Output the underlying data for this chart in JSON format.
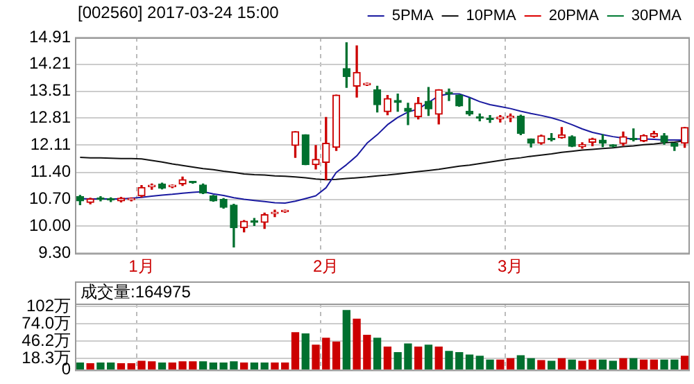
{
  "chart_data": [
    {
      "type": "candlestick",
      "title": "[002560] 2017-03-24 15:00",
      "categories": [
        null,
        null,
        null,
        null,
        null,
        null,
        "1月",
        null,
        null,
        null,
        null,
        null,
        null,
        null,
        null,
        null,
        null,
        null,
        null,
        null,
        null,
        null,
        null,
        null,
        "2月",
        null,
        null,
        null,
        null,
        null,
        null,
        null,
        null,
        null,
        null,
        null,
        null,
        null,
        null,
        null,
        null,
        null,
        "3月",
        null,
        null,
        null,
        null,
        null,
        null,
        null,
        null,
        null,
        null,
        null,
        null,
        null,
        null,
        null,
        null,
        null
      ],
      "ohlc": [
        [
          10.77,
          10.8,
          10.56,
          10.66
        ],
        [
          10.62,
          10.73,
          10.58,
          10.71
        ],
        [
          10.72,
          10.77,
          10.66,
          10.7
        ],
        [
          10.71,
          10.74,
          10.64,
          10.68
        ],
        [
          10.66,
          10.75,
          10.63,
          10.73
        ],
        [
          10.69,
          10.74,
          10.66,
          10.71
        ],
        [
          10.79,
          11.06,
          10.76,
          11.01
        ],
        [
          11.03,
          11.1,
          10.96,
          11.05
        ],
        [
          11.1,
          11.12,
          10.97,
          10.99
        ],
        [
          11.03,
          11.07,
          11.0,
          11.05
        ],
        [
          11.1,
          11.28,
          11.06,
          11.21
        ],
        [
          11.14,
          11.14,
          11.12,
          11.13
        ],
        [
          11.07,
          11.1,
          10.85,
          10.86
        ],
        [
          10.79,
          10.8,
          10.65,
          10.66
        ],
        [
          10.7,
          10.72,
          10.47,
          10.49
        ],
        [
          10.55,
          10.57,
          9.46,
          9.96
        ],
        [
          9.96,
          10.15,
          9.85,
          10.13
        ],
        [
          10.14,
          10.2,
          10.02,
          10.1
        ],
        [
          10.1,
          10.34,
          9.94,
          10.3
        ],
        [
          10.33,
          10.42,
          10.25,
          10.35
        ],
        [
          10.38,
          10.42,
          10.36,
          10.4
        ],
        [
          12.1,
          12.46,
          11.79,
          12.46
        ],
        [
          12.38,
          12.38,
          11.6,
          11.6
        ],
        [
          11.6,
          12.1,
          11.49,
          11.74
        ],
        [
          11.66,
          12.83,
          11.21,
          12.16
        ],
        [
          12.05,
          13.41,
          11.97,
          13.41
        ],
        [
          14.1,
          14.77,
          13.61,
          13.89
        ],
        [
          13.64,
          14.69,
          13.36,
          14.0
        ],
        [
          13.68,
          13.72,
          13.66,
          13.7
        ],
        [
          13.55,
          13.64,
          12.97,
          13.16
        ],
        [
          12.98,
          13.4,
          12.9,
          13.32
        ],
        [
          13.27,
          13.44,
          12.99,
          13.22
        ],
        [
          13.07,
          13.2,
          12.64,
          12.99
        ],
        [
          12.85,
          13.35,
          12.79,
          13.2
        ],
        [
          13.25,
          13.61,
          12.88,
          13.05
        ],
        [
          12.91,
          13.55,
          12.66,
          13.55
        ],
        [
          13.48,
          13.57,
          13.27,
          13.44
        ],
        [
          13.41,
          13.41,
          13.12,
          13.13
        ],
        [
          12.99,
          13.33,
          12.88,
          12.92
        ],
        [
          12.84,
          12.92,
          12.74,
          12.81
        ],
        [
          12.8,
          12.88,
          12.7,
          12.77
        ],
        [
          12.79,
          12.88,
          12.71,
          12.84
        ],
        [
          12.82,
          12.92,
          12.72,
          12.86
        ],
        [
          12.86,
          12.89,
          12.38,
          12.41
        ],
        [
          12.27,
          12.27,
          12.06,
          12.16
        ],
        [
          12.16,
          12.37,
          12.13,
          12.35
        ],
        [
          12.28,
          12.41,
          12.22,
          12.25
        ],
        [
          12.3,
          12.57,
          12.29,
          12.38
        ],
        [
          12.33,
          12.35,
          12.07,
          12.08
        ],
        [
          12.07,
          12.17,
          12.03,
          12.12
        ],
        [
          12.18,
          12.29,
          12.09,
          12.27
        ],
        [
          12.24,
          12.38,
          12.07,
          12.16
        ],
        [
          12.1,
          12.12,
          12.06,
          12.08
        ],
        [
          12.15,
          12.45,
          12.1,
          12.33
        ],
        [
          12.27,
          12.53,
          12.22,
          12.25
        ],
        [
          12.22,
          12.38,
          12.2,
          12.36
        ],
        [
          12.33,
          12.47,
          12.31,
          12.41
        ],
        [
          12.35,
          12.41,
          12.13,
          12.19
        ],
        [
          12.16,
          12.16,
          11.97,
          12.08
        ],
        [
          12.16,
          12.57,
          12.05,
          12.57
        ]
      ],
      "colors": [
        "#00702f",
        "#cc0000",
        "#00702f",
        "#00702f",
        "#cc0000",
        "#cc0000",
        "#cc0000",
        "#cc0000",
        "#00702f",
        "#cc0000",
        "#cc0000",
        "#00702f",
        "#00702f",
        "#00702f",
        "#00702f",
        "#00702f",
        "#cc0000",
        "#00702f",
        "#cc0000",
        "#cc0000",
        "#cc0000",
        "#cc0000",
        "#00702f",
        "#cc0000",
        "#cc0000",
        "#cc0000",
        "#00702f",
        "#cc0000",
        "#cc0000",
        "#00702f",
        "#cc0000",
        "#00702f",
        "#00702f",
        "#cc0000",
        "#00702f",
        "#cc0000",
        "#00702f",
        "#00702f",
        "#00702f",
        "#00702f",
        "#00702f",
        "#cc0000",
        "#cc0000",
        "#00702f",
        "#00702f",
        "#cc0000",
        "#00702f",
        "#cc0000",
        "#00702f",
        "#cc0000",
        "#cc0000",
        "#00702f",
        "#00702f",
        "#cc0000",
        "#00702f",
        "#cc0000",
        "#cc0000",
        "#00702f",
        "#00702f",
        "#cc0000"
      ],
      "series": [
        {
          "type": "line",
          "name": "5PMA",
          "color": "#1a1aa0",
          "values": [
            10.72,
            10.71,
            10.71,
            10.71,
            10.71,
            10.73,
            10.75,
            10.78,
            10.81,
            10.83,
            10.86,
            10.88,
            10.9,
            10.84,
            10.8,
            10.74,
            10.7,
            10.67,
            10.64,
            10.61,
            10.6,
            10.65,
            10.72,
            10.79,
            11.0,
            11.4,
            11.6,
            11.83,
            12.16,
            12.38,
            12.64,
            12.83,
            12.97,
            13.05,
            13.22,
            13.39,
            13.44,
            13.44,
            13.35,
            13.24,
            13.16,
            13.11,
            13.06,
            12.99,
            12.93,
            12.88,
            12.82,
            12.74,
            12.64,
            12.53,
            12.44,
            12.38,
            12.33,
            12.29,
            12.27,
            12.27,
            12.26,
            12.24,
            12.24,
            12.24
          ]
        },
        {
          "type": "line",
          "name": "10PMA",
          "color": "#111111",
          "values": [
            11.79,
            11.78,
            11.78,
            11.77,
            11.76,
            11.76,
            11.75,
            11.71,
            11.67,
            11.62,
            11.58,
            11.54,
            11.5,
            11.47,
            11.43,
            11.4,
            11.36,
            11.34,
            11.33,
            11.31,
            11.3,
            11.28,
            11.26,
            11.23,
            11.21,
            11.22,
            11.24,
            11.26,
            11.28,
            11.31,
            11.33,
            11.36,
            11.39,
            11.42,
            11.45,
            11.48,
            11.52,
            11.56,
            11.59,
            11.63,
            11.67,
            11.71,
            11.75,
            11.78,
            11.82,
            11.85,
            11.88,
            11.92,
            11.95,
            11.98,
            12.0,
            12.02,
            12.04,
            12.07,
            12.09,
            12.12,
            12.14,
            12.17,
            12.19,
            12.22
          ]
        },
        {
          "type": "line",
          "name": "20PMA",
          "color": "#dd0000",
          "values": [
            null,
            null,
            null,
            null,
            null,
            null,
            null,
            null,
            null,
            null,
            null,
            null,
            null,
            null,
            null,
            null,
            null,
            null,
            null,
            null,
            null,
            null,
            null,
            null,
            null,
            null,
            null,
            null,
            null,
            null,
            null,
            null,
            null,
            null,
            null,
            null,
            null,
            null,
            null,
            null,
            null,
            null,
            null,
            null,
            null,
            null,
            null,
            null,
            null,
            null,
            null,
            null,
            null,
            null,
            null,
            null,
            null,
            null,
            null,
            null
          ]
        },
        {
          "type": "line",
          "name": "30PMA",
          "color": "#007a33",
          "values": [
            null,
            null,
            null,
            null,
            null,
            null,
            null,
            null,
            null,
            null,
            null,
            null,
            null,
            null,
            null,
            null,
            null,
            null,
            null,
            null,
            null,
            null,
            null,
            null,
            null,
            null,
            null,
            null,
            null,
            null,
            null,
            null,
            null,
            null,
            null,
            null,
            null,
            null,
            null,
            null,
            null,
            null,
            null,
            null,
            null,
            null,
            null,
            null,
            null,
            null,
            null,
            null,
            null,
            null,
            null,
            null,
            null,
            null,
            null,
            null
          ]
        }
      ],
      "ylim": [
        9.3,
        14.91
      ],
      "yticks": [
        {
          "value": 9.3,
          "label": "9.30"
        },
        {
          "value": 10,
          "label": "10.00"
        },
        {
          "value": 10.7,
          "label": "10.70"
        },
        {
          "value": 11.4,
          "label": "11.40"
        },
        12.11,
        12.81,
        13.51,
        14.21,
        14.91
      ],
      "grid": true,
      "legend": "top right",
      "marker": "none"
    },
    {
      "type": "bar",
      "categories": [
        null,
        null,
        null,
        null,
        null,
        null,
        null,
        null,
        null,
        null,
        null,
        null,
        null,
        null,
        null,
        null,
        null,
        null,
        null,
        null,
        null,
        null,
        null,
        null,
        null,
        null,
        null,
        null,
        null,
        null,
        null,
        null,
        null,
        null,
        null,
        null,
        null,
        null,
        null,
        null,
        null,
        null,
        null,
        null,
        null,
        null,
        null,
        null,
        null,
        null,
        null,
        null,
        null,
        null,
        null,
        null,
        null,
        null,
        null,
        null
      ],
      "values": [
        11,
        10,
        11,
        11,
        10,
        10,
        14,
        13,
        11,
        11,
        13,
        13,
        13,
        11,
        11,
        13,
        11,
        11,
        11,
        11,
        11,
        60,
        58,
        40,
        51,
        45,
        96,
        82,
        56,
        51,
        37,
        28,
        42,
        37,
        40,
        37,
        30,
        28,
        24,
        22,
        16,
        16,
        18,
        23,
        18,
        15,
        14,
        18,
        16,
        14,
        16,
        16,
        14,
        18,
        18,
        16,
        16,
        16,
        16,
        22
      ],
      "colors": [
        "#00702f",
        "#cc0000",
        "#00702f",
        "#00702f",
        "#cc0000",
        "#cc0000",
        "#cc0000",
        "#cc0000",
        "#00702f",
        "#cc0000",
        "#cc0000",
        "#cc0000",
        "#00702f",
        "#00702f",
        "#00702f",
        "#00702f",
        "#cc0000",
        "#00702f",
        "#00702f",
        "#cc0000",
        "#cc0000",
        "#cc0000",
        "#00702f",
        "#cc0000",
        "#cc0000",
        "#cc0000",
        "#00702f",
        "#cc0000",
        "#cc0000",
        "#00702f",
        "#cc0000",
        "#00702f",
        "#00702f",
        "#cc0000",
        "#00702f",
        "#cc0000",
        "#00702f",
        "#00702f",
        "#00702f",
        "#00702f",
        "#00702f",
        "#cc0000",
        "#cc0000",
        "#00702f",
        "#00702f",
        "#cc0000",
        "#00702f",
        "#cc0000",
        "#00702f",
        "#cc0000",
        "#cc0000",
        "#00702f",
        "#00702f",
        "#cc0000",
        "#00702f",
        "#cc0000",
        "#cc0000",
        "#00702f",
        "#00702f",
        "#cc0000"
      ],
      "ylim": [
        0,
        107
      ],
      "yticks": [
        0,
        {
          "value": 18.3,
          "label": "18.3万"
        },
        {
          "value": 46.2,
          "label": "46.2万"
        },
        {
          "value": 74,
          "label": "74.0万"
        },
        {
          "value": 102,
          "label": "102万"
        }
      ],
      "grid": true,
      "tick_labels": "y",
      "annotations": [
        "成交量:164975"
      ]
    }
  ]
}
